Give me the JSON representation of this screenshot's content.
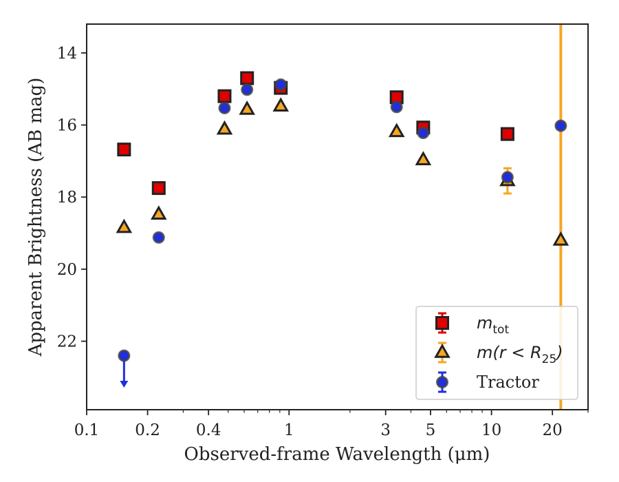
{
  "chart_data": {
    "type": "scatter",
    "xlabel": "Observed-frame Wavelength (μm)",
    "ylabel": "Apparent Brightness (AB mag)",
    "xscale": "log",
    "xlim": [
      0.1,
      30
    ],
    "ylim": [
      23.9,
      13.2
    ],
    "y_inverted": true,
    "x_ticks": [
      0.1,
      0.2,
      0.4,
      1,
      3,
      5,
      10,
      20
    ],
    "x_tick_labels": [
      "0.1",
      "0.2",
      "0.4",
      "1",
      "3",
      "5",
      "10",
      "20"
    ],
    "y_ticks": [
      14,
      16,
      18,
      20,
      22
    ],
    "y_tick_labels": [
      "14",
      "16",
      "18",
      "20",
      "22"
    ],
    "vertical_line": {
      "x": 22,
      "color": "#f5a623"
    },
    "legend_position": "lower-right",
    "series": [
      {
        "name": "m_tot",
        "marker": "square",
        "color": "#e00000",
        "points": [
          {
            "x": 0.153,
            "y": 16.68
          },
          {
            "x": 0.227,
            "y": 17.75
          },
          {
            "x": 0.48,
            "y": 15.2
          },
          {
            "x": 0.62,
            "y": 14.7
          },
          {
            "x": 0.91,
            "y": 14.97
          },
          {
            "x": 3.4,
            "y": 15.23
          },
          {
            "x": 4.6,
            "y": 16.07
          },
          {
            "x": 12,
            "y": 16.25
          }
        ]
      },
      {
        "name": "m(r < R25)",
        "marker": "triangle",
        "color": "#f5a623",
        "points": [
          {
            "x": 0.153,
            "y": 18.85
          },
          {
            "x": 0.227,
            "y": 18.48
          },
          {
            "x": 0.48,
            "y": 16.12
          },
          {
            "x": 0.62,
            "y": 15.57
          },
          {
            "x": 0.91,
            "y": 15.48
          },
          {
            "x": 3.4,
            "y": 16.19
          },
          {
            "x": 4.6,
            "y": 16.97
          },
          {
            "x": 12,
            "y": 17.55,
            "err": 0.35
          },
          {
            "x": 22,
            "y": 19.2
          }
        ]
      },
      {
        "name": "Tractor",
        "marker": "circle",
        "color": "#1f2fe0",
        "points": [
          {
            "x": 0.153,
            "y": 22.4,
            "upper_limit": true
          },
          {
            "x": 0.227,
            "y": 19.12
          },
          {
            "x": 0.48,
            "y": 15.53
          },
          {
            "x": 0.62,
            "y": 15.02
          },
          {
            "x": 0.91,
            "y": 14.88
          },
          {
            "x": 3.4,
            "y": 15.5
          },
          {
            "x": 4.6,
            "y": 16.22
          },
          {
            "x": 12,
            "y": 17.45
          },
          {
            "x": 22,
            "y": 16.02
          }
        ]
      }
    ],
    "legend": {
      "entries": [
        {
          "label_main": "m",
          "label_sub": "tot",
          "marker": "square",
          "color": "#e00000"
        },
        {
          "label_main": "m(r < R",
          "label_sub": "25",
          "label_tail": ")",
          "marker": "triangle",
          "color": "#f5a623"
        },
        {
          "label_main": "Tractor",
          "marker": "circle",
          "color": "#1f2fe0"
        }
      ]
    }
  }
}
